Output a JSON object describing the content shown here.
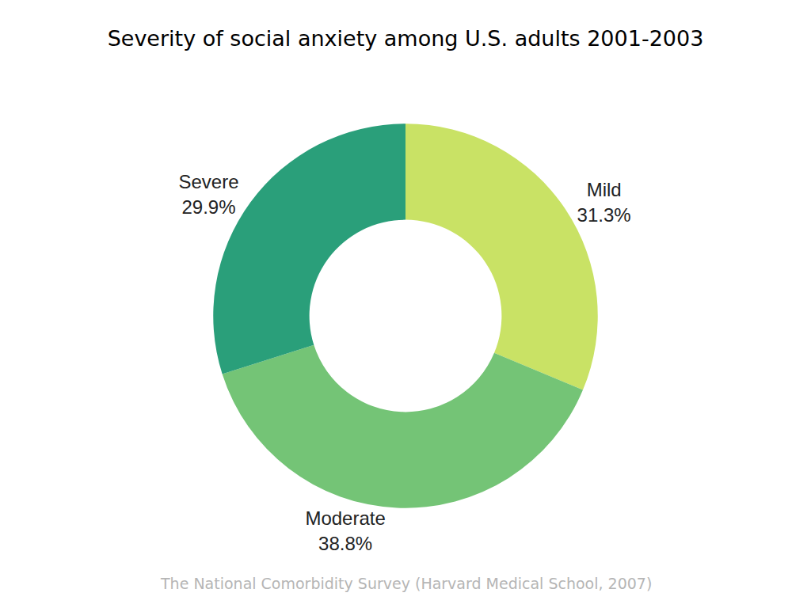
{
  "chart_data": {
    "type": "pie",
    "title": "Severity of social anxiety among U.S. adults 2001-2003",
    "categories": [
      "Mild",
      "Moderate",
      "Severe"
    ],
    "values": [
      31.3,
      38.8,
      29.9
    ],
    "value_labels": [
      "31.3%",
      "38.8%",
      "29.9%"
    ],
    "colors": [
      "#c9e265",
      "#74c476",
      "#2a9f7a"
    ],
    "data_labels": true,
    "annotations": [
      "The National Comorbidity Survey (Harvard Medical School, 2007)"
    ]
  }
}
